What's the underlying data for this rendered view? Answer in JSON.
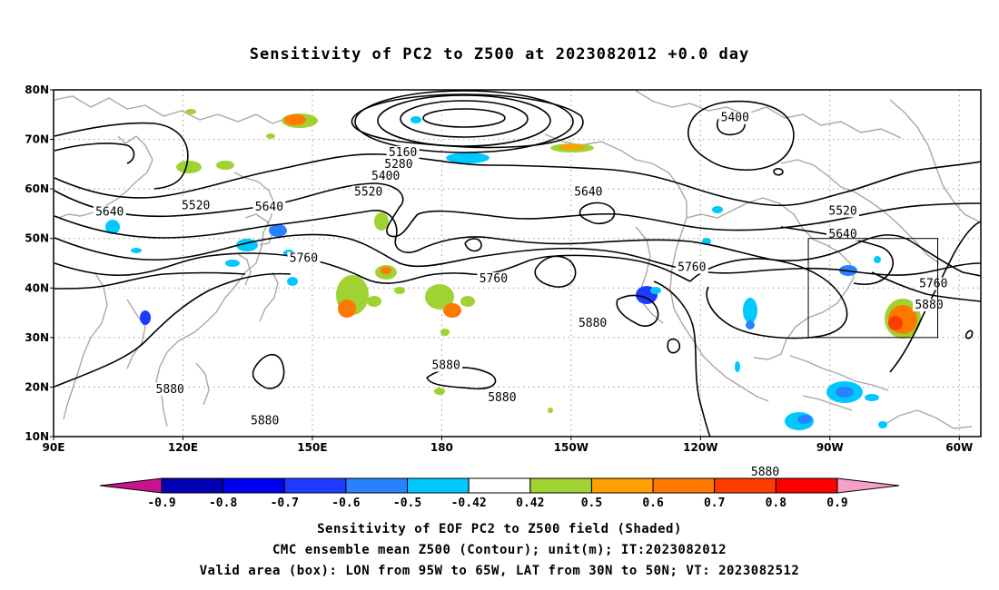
{
  "title": "Sensitivity of PC2 to Z500 at 2023082012 +0.0 day",
  "map": {
    "lon_range": [
      90,
      305
    ],
    "lat_range": [
      10,
      80
    ],
    "lat_ticks": [
      {
        "lat": 80,
        "label": "80N"
      },
      {
        "lat": 70,
        "label": "70N"
      },
      {
        "lat": 60,
        "label": "60N"
      },
      {
        "lat": 50,
        "label": "50N"
      },
      {
        "lat": 40,
        "label": "40N"
      },
      {
        "lat": 30,
        "label": "30N"
      },
      {
        "lat": 20,
        "label": "20N"
      },
      {
        "lat": 10,
        "label": "10N"
      }
    ],
    "lon_ticks": [
      {
        "lon": 90,
        "label": "90E"
      },
      {
        "lon": 120,
        "label": "120E"
      },
      {
        "lon": 150,
        "label": "150E"
      },
      {
        "lon": 180,
        "label": "180"
      },
      {
        "lon": 210,
        "label": "150W"
      },
      {
        "lon": 240,
        "label": "120W"
      },
      {
        "lon": 270,
        "label": "90W"
      },
      {
        "lon": 300,
        "label": "60W"
      }
    ],
    "grid_lines": "dotted",
    "valid_box": {
      "lon_min": 265,
      "lon_max": 295,
      "lat_min": 30,
      "lat_max": 50
    },
    "contour_labels": [
      {
        "lon": 171,
        "lat": 67,
        "text": "5160"
      },
      {
        "lon": 170,
        "lat": 64.6,
        "text": "5280"
      },
      {
        "lon": 167,
        "lat": 62.2,
        "text": "5400"
      },
      {
        "lon": 163,
        "lat": 59.0,
        "text": "5520"
      },
      {
        "lon": 123,
        "lat": 56.3,
        "text": "5520"
      },
      {
        "lon": 103,
        "lat": 55.0,
        "text": "5640"
      },
      {
        "lon": 140,
        "lat": 56.0,
        "text": "5640"
      },
      {
        "lon": 214,
        "lat": 59.0,
        "text": "5640"
      },
      {
        "lon": 248,
        "lat": 74.0,
        "text": "5400"
      },
      {
        "lon": 273,
        "lat": 55.2,
        "text": "5520"
      },
      {
        "lon": 273,
        "lat": 50.5,
        "text": "5640"
      },
      {
        "lon": 148,
        "lat": 45.6,
        "text": "5760"
      },
      {
        "lon": 192,
        "lat": 41.5,
        "text": "5760"
      },
      {
        "lon": 238,
        "lat": 43.8,
        "text": "5760"
      },
      {
        "lon": 294,
        "lat": 40.5,
        "text": "5760"
      },
      {
        "lon": 293,
        "lat": 36.2,
        "text": "5880"
      },
      {
        "lon": 215,
        "lat": 32.5,
        "text": "5880"
      },
      {
        "lon": 181,
        "lat": 24.0,
        "text": "5880"
      },
      {
        "lon": 194,
        "lat": 17.5,
        "text": "5880"
      },
      {
        "lon": 117,
        "lat": 19.2,
        "text": "5880"
      },
      {
        "lon": 139,
        "lat": 12.8,
        "text": "5880"
      },
      {
        "lon": 255,
        "lat": 2.5,
        "text": "5880"
      }
    ],
    "colors": {
      "contour": "#000000",
      "coast": "#a8a8a8",
      "grid": "#9a9a9a",
      "box": "#000000"
    }
  },
  "colorbar": {
    "labels": [
      "-0.9",
      "-0.8",
      "-0.7",
      "-0.6",
      "-0.5",
      "-0.42",
      "0.42",
      "0.5",
      "0.6",
      "0.7",
      "0.8",
      "0.9"
    ],
    "colors": [
      "#a000c8",
      "#0000b4",
      "#0000f0",
      "#1e3cff",
      "#2882ff",
      "#00c8ff",
      "#ffffff",
      "#a0d232",
      "#ffa000",
      "#ff7800",
      "#ff3c00",
      "#ff0000",
      "#ffa0c8"
    ],
    "end_left_color": "#c8148c",
    "end_right_color": "#f5a0c8"
  },
  "captions": {
    "line1": "Sensitivity of EOF PC2 to Z500 field (Shaded)",
    "line2": "CMC ensemble mean Z500 (Contour); unit(m); IT:2023082012",
    "line3": "Valid area (box): LON from 95W to 65W, LAT from 30N to 50N; VT: 2023082512"
  }
}
